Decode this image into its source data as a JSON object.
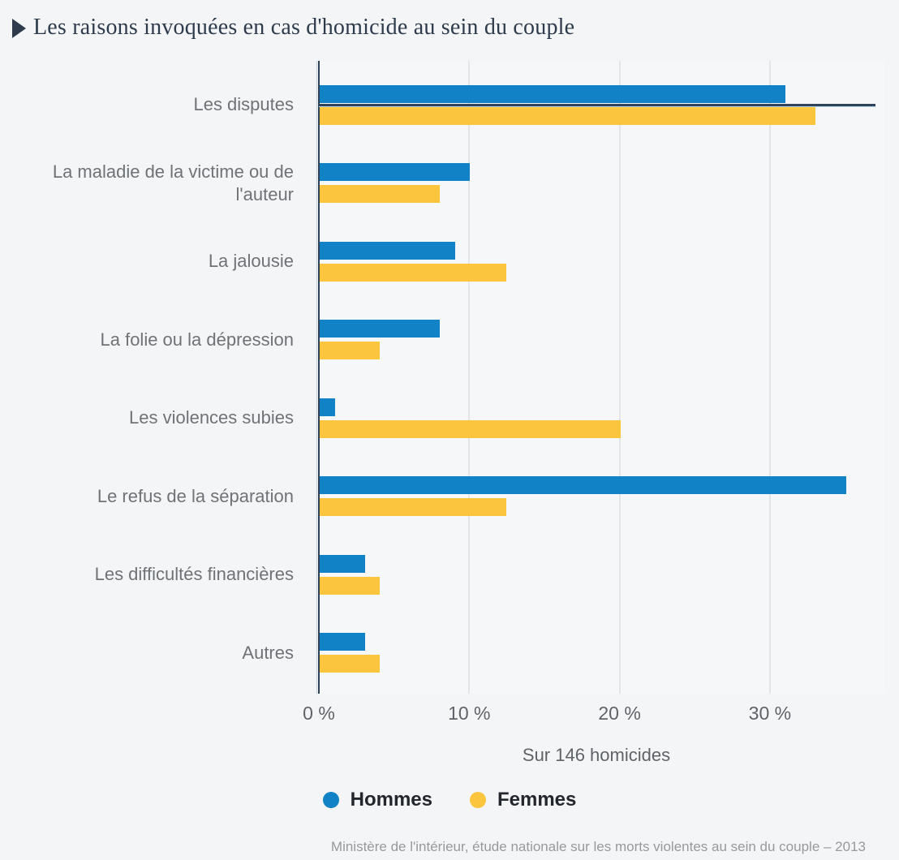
{
  "title": "Les raisons invoquées en cas d'homicide au sein du couple",
  "colors": {
    "hommes": "#1182c5",
    "femmes": "#fbc53d",
    "axis": "#2e4156",
    "marker": "#2f4459",
    "grid": "#e4e5e7",
    "title": "#2d3b4d",
    "category_label": "#6f7276",
    "tick_label": "#5f6367",
    "footer": "#97999c",
    "background": "#f4f5f6"
  },
  "chart_data": {
    "type": "bar",
    "orientation": "horizontal",
    "categories": [
      "Les disputes",
      "La maladie de la victime ou de l'auteur",
      "La jalousie",
      "La folie ou la dépression",
      "Les violences subies",
      "Le refus de la séparation",
      "Les difficultés financières",
      "Autres"
    ],
    "series": [
      {
        "name": "Hommes",
        "color": "#1182c5",
        "values": [
          31,
          10,
          9,
          8,
          1,
          35,
          3,
          3
        ]
      },
      {
        "name": "Femmes",
        "color": "#fbc53d",
        "values": [
          33,
          8,
          12.4,
          4,
          20,
          12.4,
          4,
          4
        ]
      }
    ],
    "x_ticks": [
      "0 %",
      "10 %",
      "20 %",
      "30 %"
    ],
    "x_tick_values": [
      0,
      10,
      20,
      30
    ],
    "xlim": [
      0,
      37.6
    ],
    "xlabel": "Sur 146 homicides",
    "marker_line": {
      "category": "Les disputes",
      "value": 37
    },
    "grid": "vertical",
    "legend_position": "bottom"
  },
  "legend": {
    "items": [
      {
        "label": "Hommes",
        "color": "#1182c5"
      },
      {
        "label": "Femmes",
        "color": "#fbc53d"
      }
    ]
  },
  "source": "Ministère de l'intérieur, étude nationale sur les morts violentes au sein du couple – 2013"
}
